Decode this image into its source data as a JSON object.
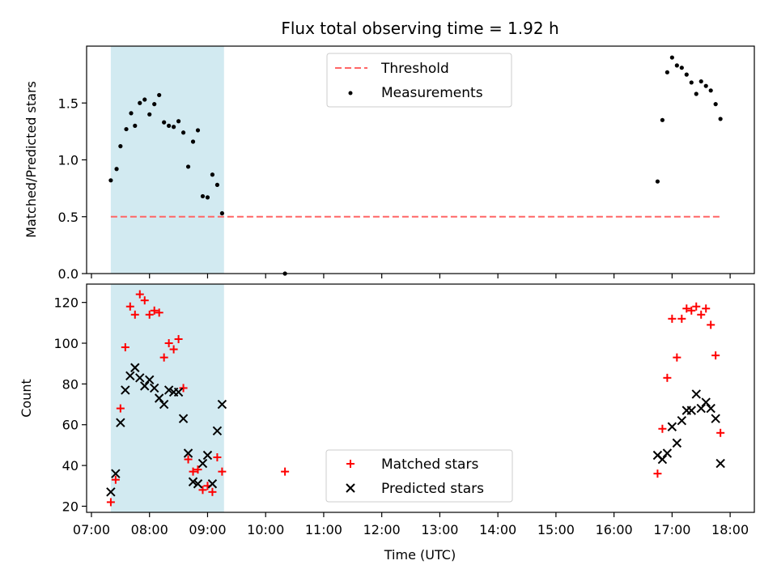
{
  "title": "Flux total observing time = 1.92 h",
  "colors": {
    "shade": "#add8e6",
    "threshold": "#ff6666",
    "measurements": "#000000",
    "matched": "#ff0000",
    "predicted": "#000000"
  },
  "chart_data": [
    {
      "type": "scatter",
      "ylabel": "Matched/Predicted stars",
      "ylim": [
        0,
        2.0
      ],
      "yticks": [
        0.0,
        0.5,
        1.0,
        1.5
      ],
      "ytick_labels": [
        "0.0",
        "0.5",
        "1.0",
        "1.5"
      ],
      "shaded_span": [
        "07:20",
        "09:17"
      ],
      "legend_position": "upper-center",
      "threshold": {
        "name": "Threshold",
        "value": 0.5,
        "x_range": [
          "07:20",
          "17:50"
        ]
      },
      "series": [
        {
          "name": "Measurements",
          "points": [
            [
              "07:20",
              0.82
            ],
            [
              "07:26",
              0.92
            ],
            [
              "07:30",
              1.12
            ],
            [
              "07:36",
              1.27
            ],
            [
              "07:41",
              1.41
            ],
            [
              "07:45",
              1.3
            ],
            [
              "07:50",
              1.5
            ],
            [
              "07:55",
              1.53
            ],
            [
              "08:00",
              1.4
            ],
            [
              "08:05",
              1.49
            ],
            [
              "08:10",
              1.57
            ],
            [
              "08:15",
              1.33
            ],
            [
              "08:20",
              1.3
            ],
            [
              "08:25",
              1.29
            ],
            [
              "08:30",
              1.34
            ],
            [
              "08:35",
              1.24
            ],
            [
              "08:40",
              0.94
            ],
            [
              "08:45",
              1.16
            ],
            [
              "08:50",
              1.26
            ],
            [
              "08:55",
              0.68
            ],
            [
              "09:00",
              0.67
            ],
            [
              "09:05",
              0.87
            ],
            [
              "09:10",
              0.78
            ],
            [
              "09:15",
              0.53
            ],
            [
              "10:20",
              0.0
            ],
            [
              "16:45",
              0.81
            ],
            [
              "16:50",
              1.35
            ],
            [
              "16:55",
              1.77
            ],
            [
              "17:00",
              1.9
            ],
            [
              "17:05",
              1.83
            ],
            [
              "17:10",
              1.81
            ],
            [
              "17:15",
              1.75
            ],
            [
              "17:20",
              1.68
            ],
            [
              "17:25",
              1.58
            ],
            [
              "17:30",
              1.69
            ],
            [
              "17:35",
              1.65
            ],
            [
              "17:40",
              1.61
            ],
            [
              "17:45",
              1.49
            ],
            [
              "17:50",
              1.36
            ]
          ]
        }
      ]
    },
    {
      "type": "scatter",
      "xlabel": "Time (UTC)",
      "ylabel": "Count",
      "ylim": [
        17,
        129
      ],
      "yticks": [
        20,
        40,
        60,
        80,
        100,
        120
      ],
      "ytick_labels": [
        "20",
        "40",
        "60",
        "80",
        "100",
        "120"
      ],
      "xlim": [
        "06:55",
        "18:25"
      ],
      "xticks": [
        "07:00",
        "08:00",
        "09:00",
        "10:00",
        "11:00",
        "12:00",
        "13:00",
        "14:00",
        "15:00",
        "16:00",
        "17:00",
        "18:00"
      ],
      "shaded_span": [
        "07:20",
        "09:17"
      ],
      "legend_position": "lower-center",
      "series": [
        {
          "name": "Matched stars",
          "marker": "+",
          "points": [
            [
              "07:20",
              22
            ],
            [
              "07:25",
              33
            ],
            [
              "07:30",
              68
            ],
            [
              "07:35",
              98
            ],
            [
              "07:40",
              118
            ],
            [
              "07:45",
              114
            ],
            [
              "07:50",
              124
            ],
            [
              "07:55",
              121
            ],
            [
              "08:00",
              114
            ],
            [
              "08:05",
              116
            ],
            [
              "08:10",
              115
            ],
            [
              "08:15",
              93
            ],
            [
              "08:20",
              100
            ],
            [
              "08:25",
              97
            ],
            [
              "08:30",
              102
            ],
            [
              "08:35",
              78
            ],
            [
              "08:40",
              43
            ],
            [
              "08:45",
              37
            ],
            [
              "08:50",
              38
            ],
            [
              "08:55",
              28
            ],
            [
              "09:00",
              30
            ],
            [
              "09:05",
              27
            ],
            [
              "09:10",
              44
            ],
            [
              "09:15",
              37
            ],
            [
              "10:20",
              37
            ],
            [
              "16:45",
              36
            ],
            [
              "16:50",
              58
            ],
            [
              "16:55",
              83
            ],
            [
              "17:00",
              112
            ],
            [
              "17:05",
              93
            ],
            [
              "17:10",
              112
            ],
            [
              "17:15",
              117
            ],
            [
              "17:20",
              116
            ],
            [
              "17:25",
              118
            ],
            [
              "17:30",
              114
            ],
            [
              "17:35",
              117
            ],
            [
              "17:40",
              109
            ],
            [
              "17:45",
              94
            ],
            [
              "17:50",
              56
            ]
          ]
        },
        {
          "name": "Predicted stars",
          "marker": "x",
          "points": [
            [
              "07:20",
              27
            ],
            [
              "07:25",
              36
            ],
            [
              "07:30",
              61
            ],
            [
              "07:35",
              77
            ],
            [
              "07:40",
              84
            ],
            [
              "07:45",
              88
            ],
            [
              "07:50",
              83
            ],
            [
              "07:55",
              79
            ],
            [
              "08:00",
              82
            ],
            [
              "08:05",
              78
            ],
            [
              "08:10",
              73
            ],
            [
              "08:15",
              70
            ],
            [
              "08:20",
              77
            ],
            [
              "08:25",
              76
            ],
            [
              "08:30",
              76
            ],
            [
              "08:35",
              63
            ],
            [
              "08:40",
              46
            ],
            [
              "08:45",
              32
            ],
            [
              "08:50",
              31
            ],
            [
              "08:55",
              41
            ],
            [
              "09:00",
              45
            ],
            [
              "09:05",
              31
            ],
            [
              "09:10",
              57
            ],
            [
              "09:15",
              70
            ],
            [
              "16:45",
              45
            ],
            [
              "16:50",
              43
            ],
            [
              "16:55",
              46
            ],
            [
              "17:00",
              59
            ],
            [
              "17:05",
              51
            ],
            [
              "17:10",
              62
            ],
            [
              "17:15",
              67
            ],
            [
              "17:20",
              67
            ],
            [
              "17:25",
              75
            ],
            [
              "17:30",
              68
            ],
            [
              "17:35",
              71
            ],
            [
              "17:40",
              68
            ],
            [
              "17:45",
              63
            ],
            [
              "17:50",
              41
            ]
          ]
        }
      ]
    }
  ]
}
